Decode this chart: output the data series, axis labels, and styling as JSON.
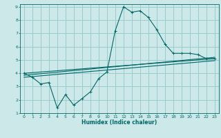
{
  "xlabel": "Humidex (Indice chaleur)",
  "ylabel": "",
  "bg_color": "#cce8e8",
  "grid_color": "#99cccc",
  "line_color": "#006666",
  "xlim": [
    -0.5,
    23.5
  ],
  "ylim": [
    1,
    9.2
  ],
  "xticks": [
    0,
    1,
    2,
    3,
    4,
    5,
    6,
    7,
    8,
    9,
    10,
    11,
    12,
    13,
    14,
    15,
    16,
    17,
    18,
    19,
    20,
    21,
    22,
    23
  ],
  "yticks": [
    1,
    2,
    3,
    4,
    5,
    6,
    7,
    8,
    9
  ],
  "line1_x": [
    0,
    1,
    2,
    3,
    4,
    5,
    6,
    7,
    8,
    9,
    10,
    11,
    12,
    13,
    14,
    15,
    16,
    17,
    18,
    19,
    20,
    21,
    22,
    23
  ],
  "line1_y": [
    4.0,
    3.7,
    3.2,
    3.3,
    1.4,
    2.4,
    1.6,
    2.1,
    2.6,
    3.6,
    4.1,
    7.2,
    9.0,
    8.6,
    8.7,
    8.2,
    7.3,
    6.2,
    5.5,
    5.5,
    5.5,
    5.4,
    5.1,
    5.1
  ],
  "line2_x": [
    0,
    23
  ],
  "line2_y": [
    4.0,
    5.1
  ],
  "line3_x": [
    0,
    23
  ],
  "line3_y": [
    3.85,
    5.2
  ],
  "line4_x": [
    0,
    23
  ],
  "line4_y": [
    3.7,
    4.95
  ]
}
